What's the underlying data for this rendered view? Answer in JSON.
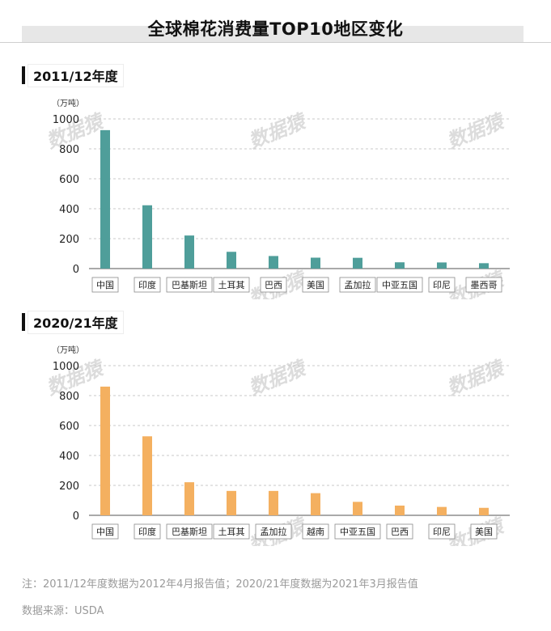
{
  "page": {
    "title": "全球棉花消费量TOP10地区变化",
    "watermark": "数据猿",
    "note": "注：2011/12年度数据为2012年4月报告值；2020/21年度数据为2021年3月报告值",
    "source": "数据来源：USDA"
  },
  "chart_data": [
    {
      "type": "bar",
      "title": "2011/12年度",
      "unit": "（万吨）",
      "categories": [
        "中国",
        "印度",
        "巴基斯坦",
        "土耳其",
        "巴西",
        "美国",
        "孟加拉",
        "中亚五国",
        "印尼",
        "墨西哥"
      ],
      "values": [
        925,
        423,
        221,
        112,
        84,
        73,
        72,
        42,
        41,
        36
      ],
      "ylim": [
        0,
        1000
      ],
      "yticks": [
        0,
        200,
        400,
        600,
        800,
        1000
      ],
      "grid": true,
      "color": "#4f9e9a"
    },
    {
      "type": "bar",
      "title": "2020/21年度",
      "unit": "（万吨）",
      "categories": [
        "中国",
        "印度",
        "巴基斯坦",
        "土耳其",
        "孟加拉",
        "越南",
        "中亚五国",
        "巴西",
        "印尼",
        "美国"
      ],
      "values": [
        860,
        528,
        221,
        163,
        163,
        148,
        90,
        65,
        56,
        50
      ],
      "ylim": [
        0,
        1000
      ],
      "yticks": [
        0,
        200,
        400,
        600,
        800,
        1000
      ],
      "grid": true,
      "color": "#f4b060"
    }
  ]
}
